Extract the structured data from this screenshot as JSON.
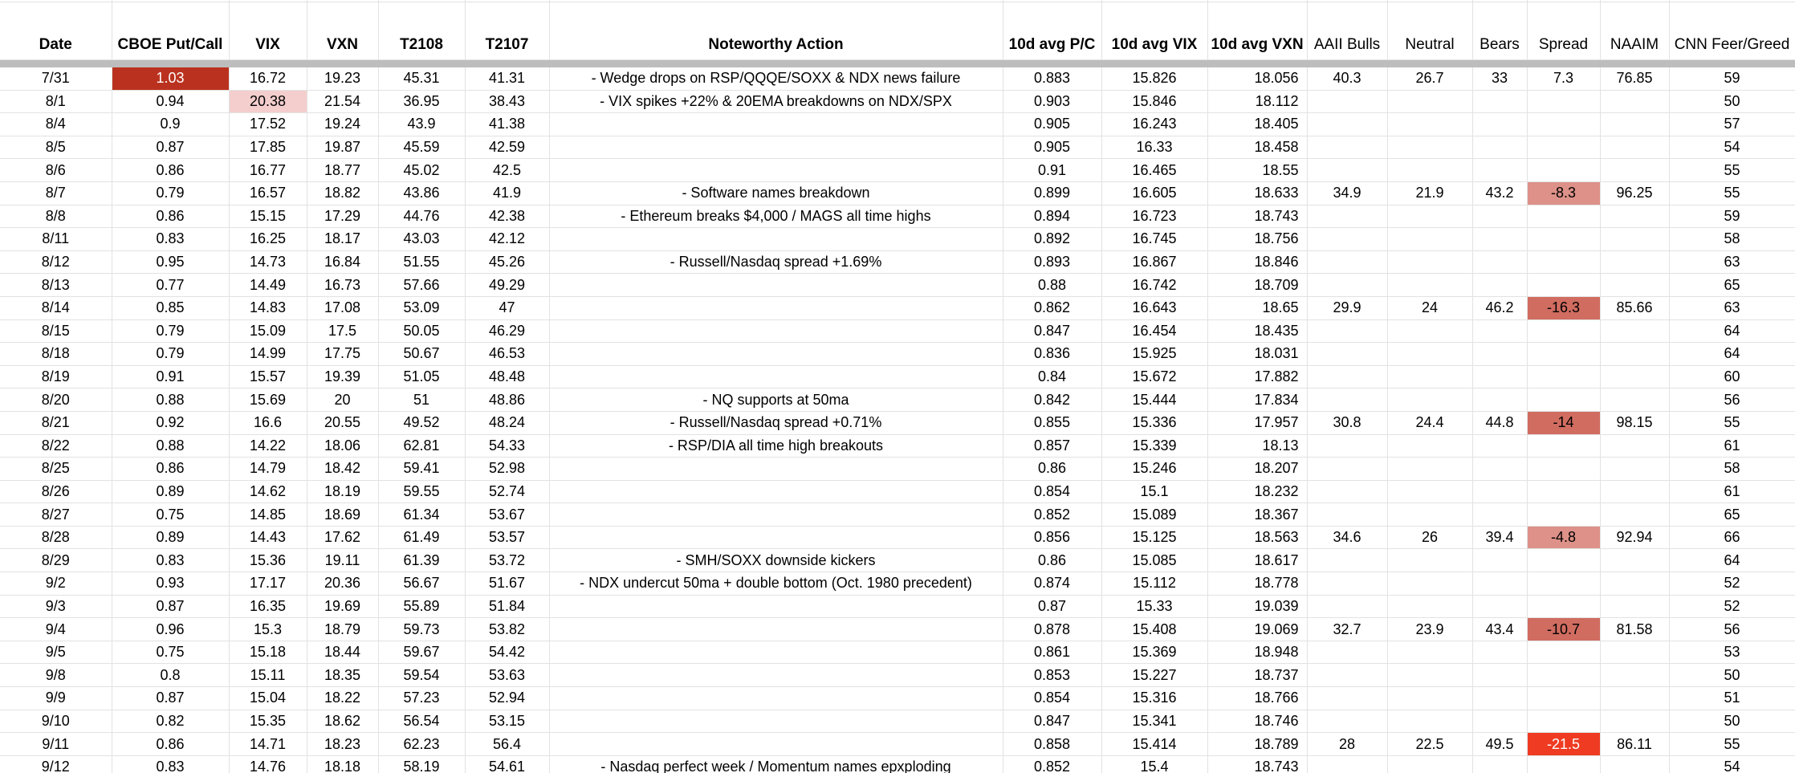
{
  "table": {
    "columns": [
      {
        "id": "date",
        "label": "Date"
      },
      {
        "id": "put_call",
        "label": "CBOE Put/Call"
      },
      {
        "id": "vix",
        "label": "VIX"
      },
      {
        "id": "vxn",
        "label": "VXN"
      },
      {
        "id": "t2108",
        "label": "T2108"
      },
      {
        "id": "t2107",
        "label": "T2107"
      },
      {
        "id": "action",
        "label": "Noteworthy Action"
      },
      {
        "id": "avg_pc",
        "label": "10d avg P/C"
      },
      {
        "id": "avg_vix",
        "label": "10d avg VIX"
      },
      {
        "id": "avg_vxn",
        "label": "10d avg VXN"
      },
      {
        "id": "aaii_bulls",
        "label": "AAII Bulls"
      },
      {
        "id": "neutral",
        "label": "Neutral"
      },
      {
        "id": "bears",
        "label": "Bears"
      },
      {
        "id": "spread",
        "label": "Spread"
      },
      {
        "id": "naaim",
        "label": "NAAIM"
      },
      {
        "id": "cnn",
        "label": "CNN Feer/Greed"
      }
    ],
    "highlight_colors": {
      "dark_red": "#ba321f",
      "light_pink": "#f3cecd",
      "salmon_light": "#dd9188",
      "salmon_mid": "#d06c60",
      "bright_red": "#ee3b22",
      "white_text": "#ffffff",
      "divider_gray": "#bdbdbd",
      "gridline": "#e2e2e2"
    },
    "rows": [
      {
        "date": "7/31",
        "put_call": "1.03",
        "put_call_bg": "#ba321f",
        "put_call_fg": "#ffffff",
        "vix": "16.72",
        "vxn": "19.23",
        "t2108": "45.31",
        "t2107": "41.31",
        "action": "- Wedge drops on RSP/QQQE/SOXX & NDX news failure",
        "avg_pc": "0.883",
        "avg_vix": "15.826",
        "avg_vxn": "18.056",
        "aaii_bulls": "40.3",
        "neutral": "26.7",
        "bears": "33",
        "spread": "7.3",
        "naaim": "76.85",
        "cnn": "59"
      },
      {
        "date": "8/1",
        "put_call": "0.94",
        "vix": "20.38",
        "vix_bg": "#f3cecd",
        "vxn": "21.54",
        "t2108": "36.95",
        "t2107": "38.43",
        "action": "- VIX spikes +22% & 20EMA breakdowns on NDX/SPX",
        "avg_pc": "0.903",
        "avg_vix": "15.846",
        "avg_vxn": "18.112",
        "aaii_bulls": "",
        "neutral": "",
        "bears": "",
        "spread": "",
        "naaim": "",
        "cnn": "50"
      },
      {
        "date": "8/4",
        "put_call": "0.9",
        "vix": "17.52",
        "vxn": "19.24",
        "t2108": "43.9",
        "t2107": "41.38",
        "action": "",
        "avg_pc": "0.905",
        "avg_vix": "16.243",
        "avg_vxn": "18.405",
        "aaii_bulls": "",
        "neutral": "",
        "bears": "",
        "spread": "",
        "naaim": "",
        "cnn": "57"
      },
      {
        "date": "8/5",
        "put_call": "0.87",
        "vix": "17.85",
        "vxn": "19.87",
        "t2108": "45.59",
        "t2107": "42.59",
        "action": "",
        "avg_pc": "0.905",
        "avg_vix": "16.33",
        "avg_vxn": "18.458",
        "aaii_bulls": "",
        "neutral": "",
        "bears": "",
        "spread": "",
        "naaim": "",
        "cnn": "54"
      },
      {
        "date": "8/6",
        "put_call": "0.86",
        "vix": "16.77",
        "vxn": "18.77",
        "t2108": "45.02",
        "t2107": "42.5",
        "action": "",
        "avg_pc": "0.91",
        "avg_vix": "16.465",
        "avg_vxn": "18.55",
        "aaii_bulls": "",
        "neutral": "",
        "bears": "",
        "spread": "",
        "naaim": "",
        "cnn": "55"
      },
      {
        "date": "8/7",
        "put_call": "0.79",
        "vix": "16.57",
        "vxn": "18.82",
        "t2108": "43.86",
        "t2107": "41.9",
        "action": "- Software names breakdown",
        "avg_pc": "0.899",
        "avg_vix": "16.605",
        "avg_vxn": "18.633",
        "aaii_bulls": "34.9",
        "neutral": "21.9",
        "bears": "43.2",
        "spread": "-8.3",
        "spread_bg": "#dd9188",
        "naaim": "96.25",
        "cnn": "55"
      },
      {
        "date": "8/8",
        "put_call": "0.86",
        "vix": "15.15",
        "vxn": "17.29",
        "t2108": "44.76",
        "t2107": "42.38",
        "action": "- Ethereum breaks $4,000 / MAGS all time highs",
        "avg_pc": "0.894",
        "avg_vix": "16.723",
        "avg_vxn": "18.743",
        "aaii_bulls": "",
        "neutral": "",
        "bears": "",
        "spread": "",
        "naaim": "",
        "cnn": "59"
      },
      {
        "date": "8/11",
        "put_call": "0.83",
        "vix": "16.25",
        "vxn": "18.17",
        "t2108": "43.03",
        "t2107": "42.12",
        "action": "",
        "avg_pc": "0.892",
        "avg_vix": "16.745",
        "avg_vxn": "18.756",
        "aaii_bulls": "",
        "neutral": "",
        "bears": "",
        "spread": "",
        "naaim": "",
        "cnn": "58"
      },
      {
        "date": "8/12",
        "put_call": "0.95",
        "vix": "14.73",
        "vxn": "16.84",
        "t2108": "51.55",
        "t2107": "45.26",
        "action": "- Russell/Nasdaq spread +1.69%",
        "avg_pc": "0.893",
        "avg_vix": "16.867",
        "avg_vxn": "18.846",
        "aaii_bulls": "",
        "neutral": "",
        "bears": "",
        "spread": "",
        "naaim": "",
        "cnn": "63"
      },
      {
        "date": "8/13",
        "put_call": "0.77",
        "vix": "14.49",
        "vxn": "16.73",
        "t2108": "57.66",
        "t2107": "49.29",
        "action": "",
        "avg_pc": "0.88",
        "avg_vix": "16.742",
        "avg_vxn": "18.709",
        "aaii_bulls": "",
        "neutral": "",
        "bears": "",
        "spread": "",
        "naaim": "",
        "cnn": "65"
      },
      {
        "date": "8/14",
        "put_call": "0.85",
        "vix": "14.83",
        "vxn": "17.08",
        "t2108": "53.09",
        "t2107": "47",
        "action": "",
        "avg_pc": "0.862",
        "avg_vix": "16.643",
        "avg_vxn": "18.65",
        "aaii_bulls": "29.9",
        "neutral": "24",
        "bears": "46.2",
        "spread": "-16.3",
        "spread_bg": "#d06c60",
        "naaim": "85.66",
        "cnn": "63"
      },
      {
        "date": "8/15",
        "put_call": "0.79",
        "vix": "15.09",
        "vxn": "17.5",
        "t2108": "50.05",
        "t2107": "46.29",
        "action": "",
        "avg_pc": "0.847",
        "avg_vix": "16.454",
        "avg_vxn": "18.435",
        "aaii_bulls": "",
        "neutral": "",
        "bears": "",
        "spread": "",
        "naaim": "",
        "cnn": "64"
      },
      {
        "date": "8/18",
        "put_call": "0.79",
        "vix": "14.99",
        "vxn": "17.75",
        "t2108": "50.67",
        "t2107": "46.53",
        "action": "",
        "avg_pc": "0.836",
        "avg_vix": "15.925",
        "avg_vxn": "18.031",
        "aaii_bulls": "",
        "neutral": "",
        "bears": "",
        "spread": "",
        "naaim": "",
        "cnn": "64"
      },
      {
        "date": "8/19",
        "put_call": "0.91",
        "vix": "15.57",
        "vxn": "19.39",
        "t2108": "51.05",
        "t2107": "48.48",
        "action": "",
        "avg_pc": "0.84",
        "avg_vix": "15.672",
        "avg_vxn": "17.882",
        "aaii_bulls": "",
        "neutral": "",
        "bears": "",
        "spread": "",
        "naaim": "",
        "cnn": "60"
      },
      {
        "date": "8/20",
        "put_call": "0.88",
        "vix": "15.69",
        "vxn": "20",
        "t2108": "51",
        "t2107": "48.86",
        "action": "- NQ supports at 50ma",
        "avg_pc": "0.842",
        "avg_vix": "15.444",
        "avg_vxn": "17.834",
        "aaii_bulls": "",
        "neutral": "",
        "bears": "",
        "spread": "",
        "naaim": "",
        "cnn": "56"
      },
      {
        "date": "8/21",
        "put_call": "0.92",
        "vix": "16.6",
        "vxn": "20.55",
        "t2108": "49.52",
        "t2107": "48.24",
        "action": "- Russell/Nasdaq spread +0.71%",
        "avg_pc": "0.855",
        "avg_vix": "15.336",
        "avg_vxn": "17.957",
        "aaii_bulls": "30.8",
        "neutral": "24.4",
        "bears": "44.8",
        "spread": "-14",
        "spread_bg": "#d06c60",
        "naaim": "98.15",
        "cnn": "55"
      },
      {
        "date": "8/22",
        "put_call": "0.88",
        "vix": "14.22",
        "vxn": "18.06",
        "t2108": "62.81",
        "t2107": "54.33",
        "action": "- RSP/DIA all time high breakouts",
        "avg_pc": "0.857",
        "avg_vix": "15.339",
        "avg_vxn": "18.13",
        "aaii_bulls": "",
        "neutral": "",
        "bears": "",
        "spread": "",
        "naaim": "",
        "cnn": "61"
      },
      {
        "date": "8/25",
        "put_call": "0.86",
        "vix": "14.79",
        "vxn": "18.42",
        "t2108": "59.41",
        "t2107": "52.98",
        "action": "",
        "avg_pc": "0.86",
        "avg_vix": "15.246",
        "avg_vxn": "18.207",
        "aaii_bulls": "",
        "neutral": "",
        "bears": "",
        "spread": "",
        "naaim": "",
        "cnn": "58"
      },
      {
        "date": "8/26",
        "put_call": "0.89",
        "vix": "14.62",
        "vxn": "18.19",
        "t2108": "59.55",
        "t2107": "52.74",
        "action": "",
        "avg_pc": "0.854",
        "avg_vix": "15.1",
        "avg_vxn": "18.232",
        "aaii_bulls": "",
        "neutral": "",
        "bears": "",
        "spread": "",
        "naaim": "",
        "cnn": "61"
      },
      {
        "date": "8/27",
        "put_call": "0.75",
        "vix": "14.85",
        "vxn": "18.69",
        "t2108": "61.34",
        "t2107": "53.67",
        "action": "",
        "avg_pc": "0.852",
        "avg_vix": "15.089",
        "avg_vxn": "18.367",
        "aaii_bulls": "",
        "neutral": "",
        "bears": "",
        "spread": "",
        "naaim": "",
        "cnn": "65"
      },
      {
        "date": "8/28",
        "put_call": "0.89",
        "vix": "14.43",
        "vxn": "17.62",
        "t2108": "61.49",
        "t2107": "53.57",
        "action": "",
        "avg_pc": "0.856",
        "avg_vix": "15.125",
        "avg_vxn": "18.563",
        "aaii_bulls": "34.6",
        "neutral": "26",
        "bears": "39.4",
        "spread": "-4.8",
        "spread_bg": "#dd9188",
        "naaim": "92.94",
        "cnn": "66"
      },
      {
        "date": "8/29",
        "put_call": "0.83",
        "vix": "15.36",
        "vxn": "19.11",
        "t2108": "61.39",
        "t2107": "53.72",
        "action": "- SMH/SOXX downside kickers",
        "avg_pc": "0.86",
        "avg_vix": "15.085",
        "avg_vxn": "18.617",
        "aaii_bulls": "",
        "neutral": "",
        "bears": "",
        "spread": "",
        "naaim": "",
        "cnn": "64"
      },
      {
        "date": "9/2",
        "put_call": "0.93",
        "vix": "17.17",
        "vxn": "20.36",
        "t2108": "56.67",
        "t2107": "51.67",
        "action": "- NDX undercut 50ma + double bottom (Oct. 1980 precedent)",
        "avg_pc": "0.874",
        "avg_vix": "15.112",
        "avg_vxn": "18.778",
        "aaii_bulls": "",
        "neutral": "",
        "bears": "",
        "spread": "",
        "naaim": "",
        "cnn": "52"
      },
      {
        "date": "9/3",
        "put_call": "0.87",
        "vix": "16.35",
        "vxn": "19.69",
        "t2108": "55.89",
        "t2107": "51.84",
        "action": "",
        "avg_pc": "0.87",
        "avg_vix": "15.33",
        "avg_vxn": "19.039",
        "aaii_bulls": "",
        "neutral": "",
        "bears": "",
        "spread": "",
        "naaim": "",
        "cnn": "52"
      },
      {
        "date": "9/4",
        "put_call": "0.96",
        "vix": "15.3",
        "vxn": "18.79",
        "t2108": "59.73",
        "t2107": "53.82",
        "action": "",
        "avg_pc": "0.878",
        "avg_vix": "15.408",
        "avg_vxn": "19.069",
        "aaii_bulls": "32.7",
        "neutral": "23.9",
        "bears": "43.4",
        "spread": "-10.7",
        "spread_bg": "#d06c60",
        "naaim": "81.58",
        "cnn": "56"
      },
      {
        "date": "9/5",
        "put_call": "0.75",
        "vix": "15.18",
        "vxn": "18.44",
        "t2108": "59.67",
        "t2107": "54.42",
        "action": "",
        "avg_pc": "0.861",
        "avg_vix": "15.369",
        "avg_vxn": "18.948",
        "aaii_bulls": "",
        "neutral": "",
        "bears": "",
        "spread": "",
        "naaim": "",
        "cnn": "53"
      },
      {
        "date": "9/8",
        "put_call": "0.8",
        "vix": "15.11",
        "vxn": "18.35",
        "t2108": "59.54",
        "t2107": "53.63",
        "action": "",
        "avg_pc": "0.853",
        "avg_vix": "15.227",
        "avg_vxn": "18.737",
        "aaii_bulls": "",
        "neutral": "",
        "bears": "",
        "spread": "",
        "naaim": "",
        "cnn": "50"
      },
      {
        "date": "9/9",
        "put_call": "0.87",
        "vix": "15.04",
        "vxn": "18.22",
        "t2108": "57.23",
        "t2107": "52.94",
        "action": "",
        "avg_pc": "0.854",
        "avg_vix": "15.316",
        "avg_vxn": "18.766",
        "aaii_bulls": "",
        "neutral": "",
        "bears": "",
        "spread": "",
        "naaim": "",
        "cnn": "51"
      },
      {
        "date": "9/10",
        "put_call": "0.82",
        "vix": "15.35",
        "vxn": "18.62",
        "t2108": "56.54",
        "t2107": "53.15",
        "action": "",
        "avg_pc": "0.847",
        "avg_vix": "15.341",
        "avg_vxn": "18.746",
        "aaii_bulls": "",
        "neutral": "",
        "bears": "",
        "spread": "",
        "naaim": "",
        "cnn": "50"
      },
      {
        "date": "9/11",
        "put_call": "0.86",
        "vix": "14.71",
        "vxn": "18.23",
        "t2108": "62.23",
        "t2107": "56.4",
        "action": "",
        "avg_pc": "0.858",
        "avg_vix": "15.414",
        "avg_vxn": "18.789",
        "aaii_bulls": "28",
        "neutral": "22.5",
        "bears": "49.5",
        "spread": "-21.5",
        "spread_bg": "#ee3b22",
        "spread_fg": "#ffffff",
        "naaim": "86.11",
        "cnn": "55"
      },
      {
        "date": "9/12",
        "put_call": "0.83",
        "vix": "14.76",
        "vxn": "18.18",
        "t2108": "58.19",
        "t2107": "54.61",
        "action": "- Nasdaq perfect week / Momentum names epxploding",
        "avg_pc": "0.852",
        "avg_vix": "15.4",
        "avg_vxn": "18.743",
        "aaii_bulls": "",
        "neutral": "",
        "bears": "",
        "spread": "",
        "naaim": "",
        "cnn": "54"
      }
    ]
  }
}
